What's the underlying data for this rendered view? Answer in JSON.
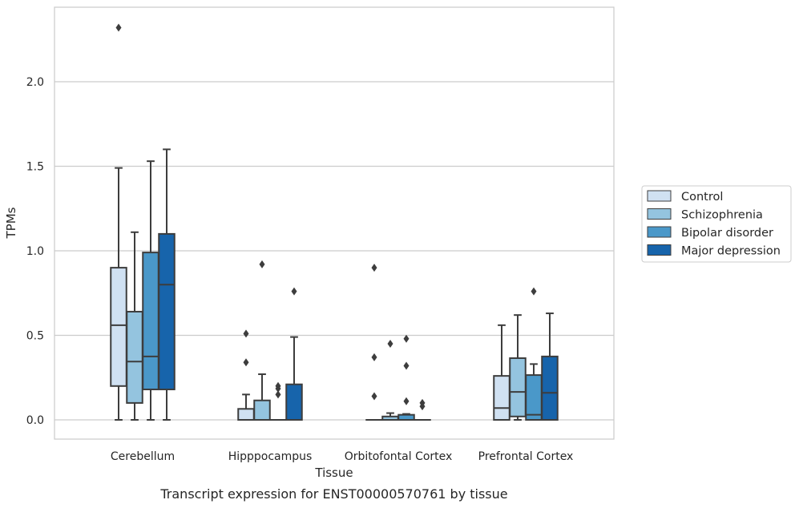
{
  "chart_data": {
    "type": "box",
    "title": "",
    "xlabel": "Tissue",
    "ylabel": "TPMs",
    "caption": "Transcript expression for ENST00000570761 by tissue",
    "categories": [
      "Cerebellum",
      "Hipppocampus",
      "Orbitofontal Cortex",
      "Prefrontal Cortex"
    ],
    "yticks": [
      "0.0",
      "0.5",
      "1.0",
      "1.5",
      "2.0"
    ],
    "ylim": [
      -0.11,
      2.43
    ],
    "grid": "horizontal",
    "legend_position": "right",
    "series": [
      {
        "name": "Control",
        "color": "#d0e1f2",
        "boxes": [
          {
            "min": 0.0,
            "q1": 0.2,
            "median": 0.56,
            "q3": 0.9,
            "max": 1.49,
            "outliers": [
              2.32
            ]
          },
          {
            "min": 0.0,
            "q1": 0.0,
            "median": 0.0,
            "q3": 0.065,
            "max": 0.15,
            "outliers": [
              0.51,
              0.34
            ]
          },
          {
            "min": 0.0,
            "q1": 0.0,
            "median": 0.0,
            "q3": 0.0,
            "max": 0.0,
            "outliers": [
              0.9,
              0.37,
              0.14
            ]
          },
          {
            "min": 0.0,
            "q1": 0.0,
            "median": 0.07,
            "q3": 0.26,
            "max": 0.56,
            "outliers": []
          }
        ]
      },
      {
        "name": "Schizophrenia",
        "color": "#94c4df",
        "boxes": [
          {
            "min": 0.0,
            "q1": 0.1,
            "median": 0.345,
            "q3": 0.64,
            "max": 1.11,
            "outliers": []
          },
          {
            "min": 0.0,
            "q1": 0.0,
            "median": 0.0,
            "q3": 0.115,
            "max": 0.27,
            "outliers": [
              0.92
            ]
          },
          {
            "min": 0.0,
            "q1": 0.0,
            "median": 0.0,
            "q3": 0.02,
            "max": 0.04,
            "outliers": [
              0.45
            ]
          },
          {
            "min": 0.0,
            "q1": 0.02,
            "median": 0.165,
            "q3": 0.365,
            "max": 0.62,
            "outliers": []
          }
        ]
      },
      {
        "name": "Bipolar disorder",
        "color": "#4a98c9",
        "boxes": [
          {
            "min": 0.0,
            "q1": 0.18,
            "median": 0.375,
            "q3": 0.99,
            "max": 1.53,
            "outliers": []
          },
          {
            "min": 0.0,
            "q1": 0.0,
            "median": 0.0,
            "q3": 0.0,
            "max": 0.0,
            "outliers": [
              0.2,
              0.185,
              0.15
            ]
          },
          {
            "min": 0.0,
            "q1": 0.0,
            "median": 0.0,
            "q3": 0.03,
            "max": 0.035,
            "outliers": [
              0.48,
              0.32,
              0.11
            ]
          },
          {
            "min": 0.0,
            "q1": 0.0,
            "median": 0.03,
            "q3": 0.265,
            "max": 0.33,
            "outliers": [
              0.76
            ]
          }
        ]
      },
      {
        "name": "Major depression",
        "color": "#1764ab",
        "boxes": [
          {
            "min": 0.0,
            "q1": 0.18,
            "median": 0.8,
            "q3": 1.1,
            "max": 1.6,
            "outliers": []
          },
          {
            "min": 0.0,
            "q1": 0.0,
            "median": 0.0,
            "q3": 0.21,
            "max": 0.49,
            "outliers": [
              0.76
            ]
          },
          {
            "min": 0.0,
            "q1": 0.0,
            "median": 0.0,
            "q3": 0.0,
            "max": 0.0,
            "outliers": [
              0.1,
              0.08
            ]
          },
          {
            "min": 0.0,
            "q1": 0.0,
            "median": 0.16,
            "q3": 0.375,
            "max": 0.63,
            "outliers": []
          }
        ]
      }
    ]
  }
}
